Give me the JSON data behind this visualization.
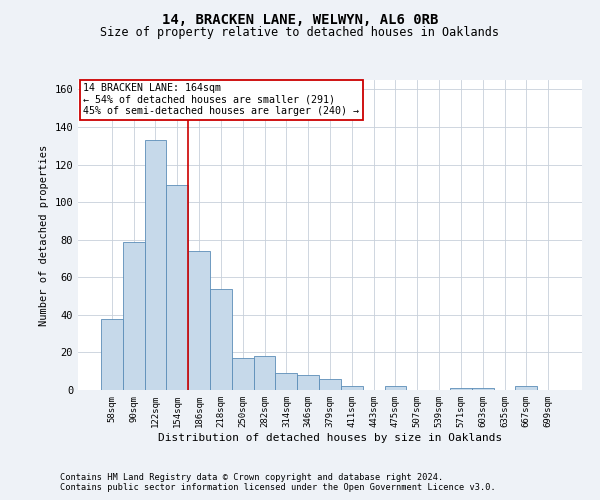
{
  "title": "14, BRACKEN LANE, WELWYN, AL6 0RB",
  "subtitle": "Size of property relative to detached houses in Oaklands",
  "xlabel": "Distribution of detached houses by size in Oaklands",
  "ylabel": "Number of detached properties",
  "bar_labels": [
    "58sqm",
    "90sqm",
    "122sqm",
    "154sqm",
    "186sqm",
    "218sqm",
    "250sqm",
    "282sqm",
    "314sqm",
    "346sqm",
    "379sqm",
    "411sqm",
    "443sqm",
    "475sqm",
    "507sqm",
    "539sqm",
    "571sqm",
    "603sqm",
    "635sqm",
    "667sqm",
    "699sqm"
  ],
  "bar_values": [
    38,
    79,
    133,
    109,
    74,
    54,
    17,
    18,
    9,
    8,
    6,
    2,
    0,
    2,
    0,
    0,
    1,
    1,
    0,
    2,
    0
  ],
  "bar_color": "#c6d9ea",
  "bar_edge_color": "#5b8db8",
  "vline_x": 3.5,
  "vline_color": "#cc0000",
  "annotation_text": "14 BRACKEN LANE: 164sqm\n← 54% of detached houses are smaller (291)\n45% of semi-detached houses are larger (240) →",
  "annotation_box_color": "#ffffff",
  "annotation_box_edge": "#cc0000",
  "ylim": [
    0,
    165
  ],
  "yticks": [
    0,
    20,
    40,
    60,
    80,
    100,
    120,
    140,
    160
  ],
  "footer_line1": "Contains HM Land Registry data © Crown copyright and database right 2024.",
  "footer_line2": "Contains public sector information licensed under the Open Government Licence v3.0.",
  "bg_color": "#eef2f7",
  "plot_bg_color": "#ffffff",
  "grid_color": "#c8d0da"
}
